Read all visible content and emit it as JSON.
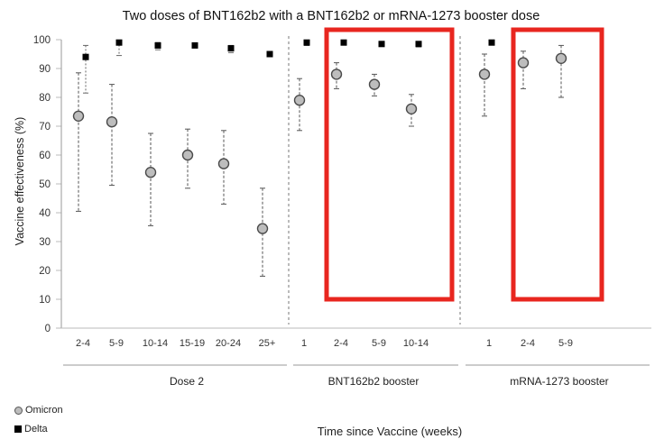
{
  "chart_data": {
    "type": "scatter",
    "title": "Two doses of BNT162b2 with a BNT162b2 or mRNA-1273 booster dose",
    "ylabel": "Vaccine effectiveness (%)",
    "xlabel": "Time since Vaccine (weeks)",
    "ylim": [
      0,
      100
    ],
    "yticks": [
      "0",
      "10",
      "20",
      "30",
      "40",
      "50",
      "60",
      "70",
      "80",
      "90",
      "100"
    ],
    "grid": false,
    "legend_position": "bottom-left",
    "groups": [
      {
        "label": "Dose 2",
        "categories": [
          "2-4",
          "5-9",
          "10-14",
          "15-19",
          "20-24",
          "25+"
        ],
        "omicron": [
          {
            "ve": 73.5,
            "low": 40.5,
            "high": 88.5
          },
          {
            "ve": 71.5,
            "low": 49.5,
            "high": 84.5
          },
          {
            "ve": 54.0,
            "low": 35.5,
            "high": 67.5
          },
          {
            "ve": 60.0,
            "low": 48.5,
            "high": 69.0
          },
          {
            "ve": 57.0,
            "low": 43.0,
            "high": 68.5
          },
          {
            "ve": 34.5,
            "low": 18.0,
            "high": 48.5
          }
        ],
        "delta": [
          {
            "ve": 94.0,
            "low": 81.5,
            "high": 98.0
          },
          {
            "ve": 99.0,
            "low": 94.5,
            "high": 99.5
          },
          {
            "ve": 98.0,
            "low": 96.5,
            "high": 99.0
          },
          {
            "ve": 98.0,
            "low": 97.5,
            "high": 98.5
          },
          {
            "ve": 97.0,
            "low": 95.5,
            "high": 98.0
          },
          {
            "ve": 95.0,
            "low": 94.5,
            "high": 95.5
          }
        ]
      },
      {
        "label": "BNT162b2 booster",
        "categories": [
          "1",
          "2-4",
          "5-9",
          "10-14"
        ],
        "omicron": [
          {
            "ve": 79.0,
            "low": 68.5,
            "high": 86.5
          },
          {
            "ve": 88.0,
            "low": 83.0,
            "high": 92.0
          },
          {
            "ve": 84.5,
            "low": 80.5,
            "high": 88.0
          },
          {
            "ve": 76.0,
            "low": 70.0,
            "high": 81.0
          }
        ],
        "delta": [
          {
            "ve": 99.0,
            "low": 98.0,
            "high": 99.5
          },
          {
            "ve": 99.0,
            "low": 98.5,
            "high": 99.5
          },
          {
            "ve": 98.5,
            "low": 98.0,
            "high": 99.0
          },
          {
            "ve": 98.5,
            "low": 97.5,
            "high": 99.0
          }
        ]
      },
      {
        "label": "mRNA-1273 booster",
        "categories": [
          "1",
          "2-4",
          "5-9"
        ],
        "omicron": [
          {
            "ve": 88.0,
            "low": 73.5,
            "high": 95.0
          },
          {
            "ve": 92.0,
            "low": 83.0,
            "high": 96.0
          },
          {
            "ve": 93.5,
            "low": 80.0,
            "high": 98.0
          }
        ],
        "delta": [
          {
            "ve": 99.0,
            "low": 98.5,
            "high": 99.5
          },
          null,
          null
        ]
      }
    ],
    "legend": [
      {
        "name": "Omicron",
        "symbol": "circle",
        "color": "#bdbdbd"
      },
      {
        "name": "Delta",
        "symbol": "square",
        "color": "#000000"
      }
    ],
    "highlight_color": "#e8261f",
    "highlights": [
      {
        "group": "BNT162b2 booster",
        "categories": [
          "2-4",
          "5-9",
          "10-14"
        ],
        "ylim": [
          10,
          100
        ]
      },
      {
        "group": "mRNA-1273 booster",
        "categories": [
          "2-4",
          "5-9"
        ],
        "ylim": [
          10,
          100
        ]
      }
    ]
  }
}
